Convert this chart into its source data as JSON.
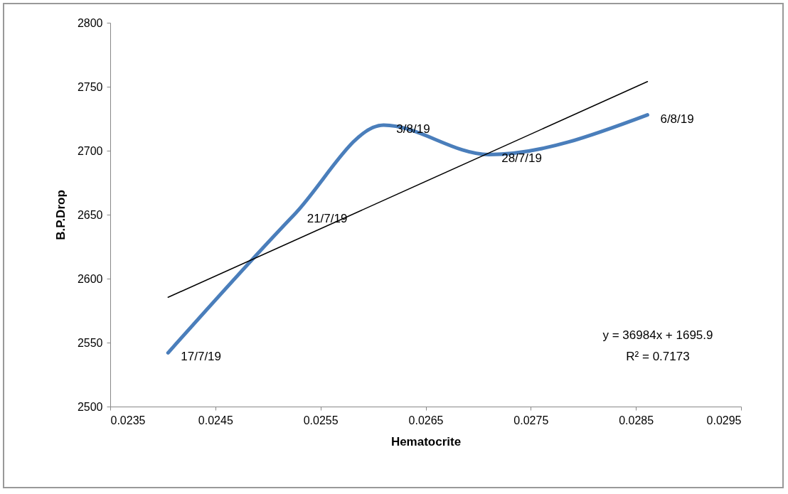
{
  "chart_data": {
    "type": "line",
    "xlabel": "Hematocrite",
    "ylabel": "B.P.Drop",
    "x": [
      0.02405,
      0.02525,
      0.0261,
      0.0271,
      0.02861
    ],
    "xlim": [
      0.0235,
      0.0295
    ],
    "xticks": [
      0.0235,
      0.0245,
      0.0255,
      0.0265,
      0.0275,
      0.0285,
      0.0295
    ],
    "ylim": [
      2500,
      2800
    ],
    "yticks": [
      2500,
      2550,
      2600,
      2650,
      2700,
      2750,
      2800
    ],
    "series": [
      {
        "color": "#4a7ebb",
        "values": [
          2542,
          2650,
          2720,
          2697,
          2728
        ]
      },
      {
        "type": "line",
        "color": "#000000",
        "x": [
          0.02405,
          0.02861
        ],
        "values": [
          2585.4,
          2754.0
        ]
      }
    ],
    "annotations": [
      {
        "text": "17/7/19",
        "x": 0.02405,
        "y": 2542
      },
      {
        "text": "21/7/19",
        "x": 0.02525,
        "y": 2650
      },
      {
        "text": "3/8/19",
        "x": 0.0261,
        "y": 2720
      },
      {
        "text": "28/7/19",
        "x": 0.0271,
        "y": 2697
      },
      {
        "text": "6/8/19",
        "x": 0.02861,
        "y": 2728
      },
      "y = 36984x + 1695.9",
      "R² = 0.7173"
    ]
  }
}
